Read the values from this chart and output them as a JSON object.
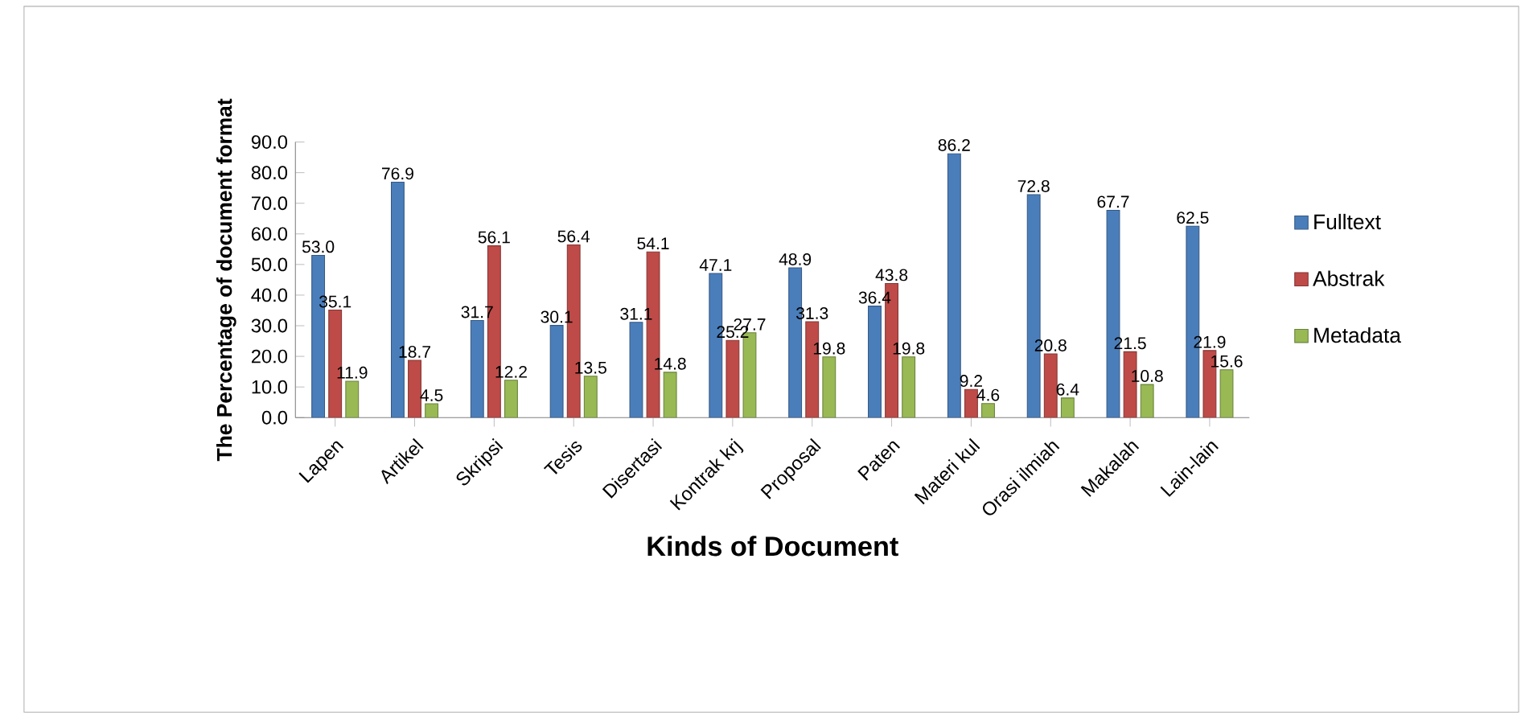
{
  "chart_data": {
    "type": "bar",
    "xlabel": "Kinds of Document",
    "ylabel": "The Percentage of document format",
    "categories": [
      "Lapen",
      "Artikel",
      "Skripsi",
      "Tesis",
      "Disertasi",
      "Kontrak krj",
      "Proposal",
      "Paten",
      "Materi kul",
      "Orasi ilmiah",
      "Makalah",
      "Lain-lain"
    ],
    "series": [
      {
        "name": "Fulltext",
        "color": "#4a7ebb",
        "values": [
          53.0,
          76.9,
          31.7,
          30.1,
          31.1,
          47.1,
          48.9,
          36.4,
          86.2,
          72.8,
          67.7,
          62.5
        ],
        "value_labels": [
          "53.0",
          "76.9",
          "31.7",
          "30.1",
          "31.1",
          "47.1",
          "48.9",
          "36.4",
          "86.2",
          "72.8",
          "67.7",
          "62.5"
        ]
      },
      {
        "name": "Abstrak",
        "color": "#be4b48",
        "values": [
          35.1,
          18.7,
          56.1,
          56.4,
          54.1,
          25.2,
          31.3,
          43.8,
          9.2,
          20.8,
          21.5,
          21.9
        ],
        "value_labels": [
          "35.1",
          "18.7",
          "56.1",
          "56.4",
          "54.1",
          "25.2",
          "31.3",
          "43.8",
          "9.2",
          "20.8",
          "21.5",
          "21.9"
        ]
      },
      {
        "name": "Metadata",
        "color": "#98b954",
        "values": [
          11.9,
          4.5,
          12.2,
          13.5,
          14.8,
          27.7,
          19.8,
          19.8,
          4.6,
          6.4,
          10.8,
          15.6
        ],
        "value_labels": [
          "11.9",
          "4.5",
          "12.2",
          "13.5",
          "14.8",
          "27.7",
          "19.8",
          "19.8",
          "4.6",
          "6.4",
          "10.8",
          "15.6"
        ]
      }
    ],
    "ylim": [
      0,
      90
    ],
    "yticks": [
      {
        "value": 0,
        "label": "0.0"
      },
      {
        "value": 10,
        "label": "10.0"
      },
      {
        "value": 20,
        "label": "20.0"
      },
      {
        "value": 30,
        "label": "30.0"
      },
      {
        "value": 40,
        "label": "40.0"
      },
      {
        "value": 50,
        "label": "50.0"
      },
      {
        "value": 60,
        "label": "60.0"
      },
      {
        "value": 70,
        "label": "70.0"
      },
      {
        "value": 80,
        "label": "80.0"
      },
      {
        "value": 90,
        "label": "90.0"
      }
    ],
    "legend": "right",
    "grid": false
  }
}
